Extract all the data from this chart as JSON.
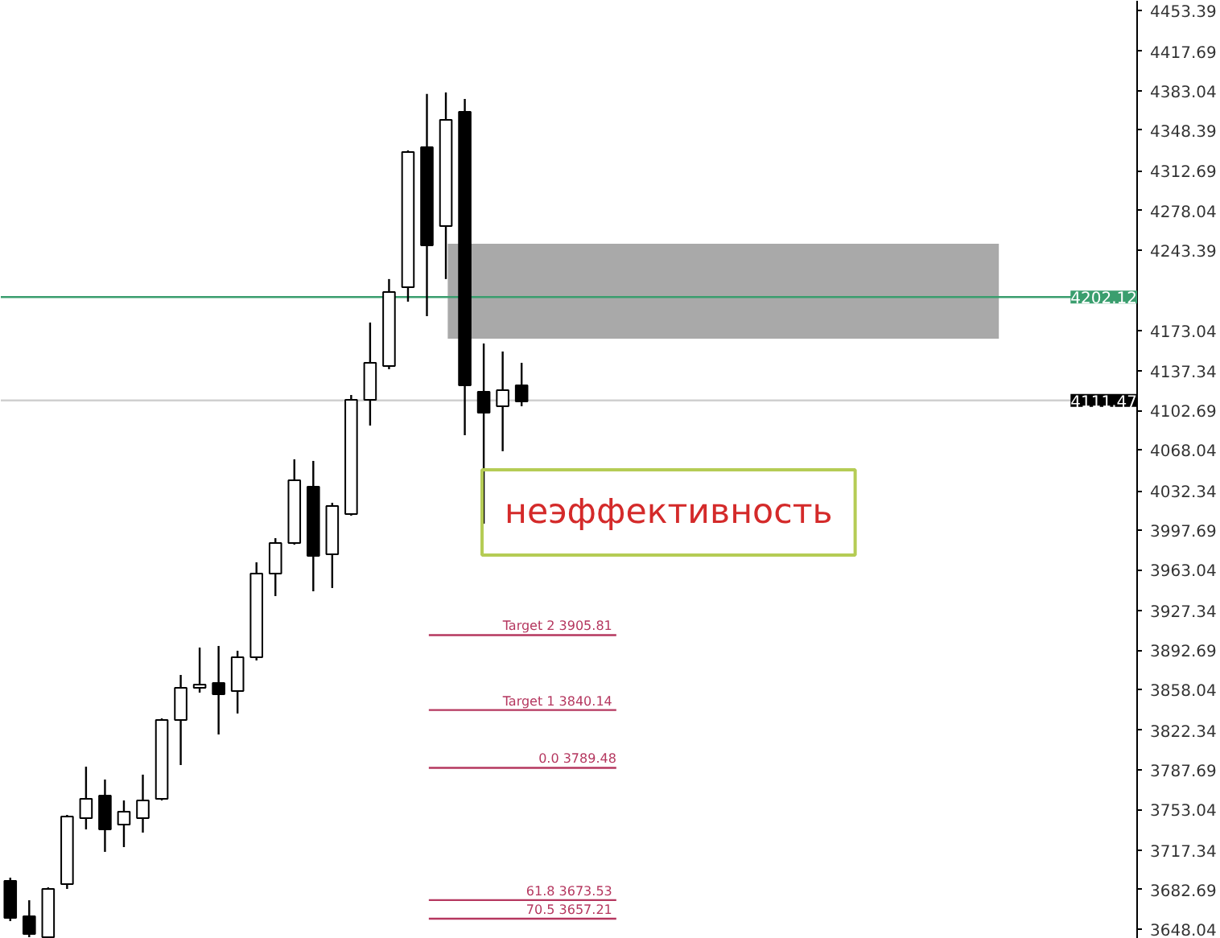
{
  "chart_data": {
    "type": "candlestick",
    "categories": [
      null,
      null,
      null,
      null,
      null,
      null,
      null,
      null,
      null,
      null,
      null,
      null,
      null,
      null,
      null,
      null,
      null,
      null,
      null,
      null,
      null,
      null,
      null,
      null,
      null,
      null,
      null,
      null,
      null,
      null,
      null,
      null,
      null,
      null,
      null,
      null,
      null,
      null,
      null,
      null,
      null,
      null,
      null,
      null,
      null,
      null,
      null,
      null,
      null,
      null,
      null,
      null,
      null,
      null,
      null,
      null,
      null,
      null,
      null,
      null
    ],
    "ohlc": [
      [
        3690.4,
        3693.2,
        3655.1,
        3657.9
      ],
      [
        3659.3,
        3673.4,
        3641.0,
        3643.8
      ],
      [
        3641.0,
        3684.7,
        3641.0,
        3683.3
      ],
      [
        3687.6,
        3748.2,
        3683.3,
        3746.8
      ],
      [
        3745.4,
        3790.5,
        3735.5,
        3762.3
      ],
      [
        3765.1,
        3779.2,
        3715.8,
        3735.5
      ],
      [
        3739.7,
        3760.9,
        3720.0,
        3751.0
      ],
      [
        3745.4,
        3783.5,
        3732.7,
        3760.9
      ],
      [
        3762.3,
        3832.8,
        3760.9,
        3831.4
      ],
      [
        3831.4,
        3870.9,
        3791.9,
        3859.6
      ],
      [
        3859.6,
        3894.9,
        3855.4,
        3862.4
      ],
      [
        3863.9,
        3896.3,
        3818.7,
        3854.0
      ],
      [
        3856.8,
        3892.1,
        3837.1,
        3886.4
      ],
      [
        3886.4,
        3969.6,
        3883.6,
        3959.8
      ],
      [
        3959.8,
        3990.8,
        3940.0,
        3986.6
      ],
      [
        3986.6,
        4059.9,
        3985.1,
        4041.6
      ],
      [
        4035.9,
        4058.5,
        3944.2,
        3975.3
      ],
      [
        3976.7,
        4021.8,
        3947.1,
        4019.0
      ],
      [
        4011.9,
        4116.3,
        4010.5,
        4112.1
      ],
      [
        4112.1,
        4179.8,
        4089.5,
        4144.5
      ],
      [
        4141.7,
        4217.9,
        4138.9,
        4206.6
      ],
      [
        4210.8,
        4330.7,
        4198.1,
        4329.3
      ],
      [
        4333.5,
        4380.1,
        4185.4,
        4247.5
      ],
      [
        4264.4,
        4381.5,
        4217.9,
        4357.5
      ],
      [
        4364.5,
        4375.8,
        4081.1,
        4124.8
      ],
      [
        4119.1,
        4161.4,
        4003.5,
        4100.8
      ],
      [
        4106.4,
        4154.4,
        4067.0,
        4120.5
      ],
      [
        4124.8,
        4144.5,
        4106.4,
        4110.7
      ],
      null,
      null,
      null,
      null,
      null,
      null,
      null,
      null,
      null,
      null,
      null,
      null,
      null,
      null,
      null,
      null,
      null,
      null,
      null,
      null,
      null,
      null,
      null,
      null,
      null,
      null,
      null,
      null,
      null,
      null,
      null,
      null
    ],
    "ylim": [
      3639.6,
      4461.8
    ],
    "yticks": [
      4453.39,
      4417.69,
      4383.04,
      4348.39,
      4312.69,
      4278.04,
      4243.39,
      4173.04,
      4137.34,
      4102.69,
      4068.04,
      4032.34,
      3997.69,
      3963.04,
      3927.34,
      3892.69,
      3858.04,
      3822.34,
      3787.69,
      3753.04,
      3717.34,
      3682.69,
      3648.04
    ],
    "grid": false,
    "ref_lines": [
      {
        "axis": "y",
        "value": 4202.12,
        "label": "4202.12",
        "color": "#3a9e6e",
        "line_style": "solid"
      },
      {
        "axis": "y",
        "value": 4111.47,
        "label": "4111.47",
        "color": "#d0d0d0",
        "line_style": "solid"
      },
      {
        "axis": "y",
        "value": 3905.81,
        "label": "Target 2  3905.81",
        "color": "#b5375f",
        "line_style": "solid"
      },
      {
        "axis": "y",
        "value": 3840.14,
        "label": "Target 1  3840.14",
        "color": "#b5375f",
        "line_style": "solid"
      },
      {
        "axis": "y",
        "value": 3789.48,
        "label": "0.0 3789.48",
        "color": "#b5375f",
        "line_style": "solid"
      },
      {
        "axis": "y",
        "value": 3673.53,
        "label": "61.8  3673.53",
        "color": "#b5375f",
        "line_style": "solid"
      },
      {
        "axis": "y",
        "value": 3657.21,
        "label": "70.5  3657.21",
        "color": "#b5375f",
        "line_style": "solid"
      }
    ],
    "bands": [
      {
        "axis": "y",
        "from": 4165.7,
        "to": 4248.9,
        "color": "#a9a9a9"
      }
    ],
    "annotations": [
      "неэффективность"
    ]
  }
}
